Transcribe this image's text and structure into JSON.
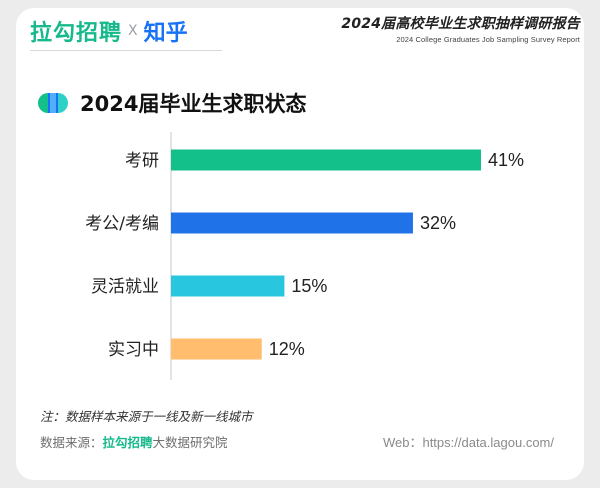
{
  "header": {
    "brand_lagou": "拉勾招聘",
    "brand_separator": "X",
    "brand_zhihu": "知乎",
    "report_title": "2024届高校毕业生求职抽样调研报告",
    "report_subtitle": "2024 College Graduates Job Sampling Survey Report"
  },
  "section": {
    "title": "2024届毕业生求职状态",
    "icon": "lagou-logo-icon"
  },
  "chart_data": {
    "type": "bar",
    "orientation": "horizontal",
    "title": "2024届毕业生求职状态",
    "categories": [
      "考研",
      "考公/考编",
      "灵活就业",
      "实习中"
    ],
    "values": [
      41,
      32,
      15,
      12
    ],
    "labels": [
      "41%",
      "32%",
      "15%",
      "12%"
    ],
    "unit": "%",
    "colors": [
      "#13c08a",
      "#1f72e8",
      "#28c6df",
      "#ffbd6d"
    ],
    "xlim": [
      0,
      41
    ],
    "grid": false,
    "legend": "none"
  },
  "footer": {
    "note": "注：数据样本来源于一线及新一线城市",
    "source_prefix": "数据来源：",
    "source_brand": "拉勾招聘",
    "source_suffix": "大数据研究院",
    "web": "Web：https://data.lagou.com/"
  }
}
